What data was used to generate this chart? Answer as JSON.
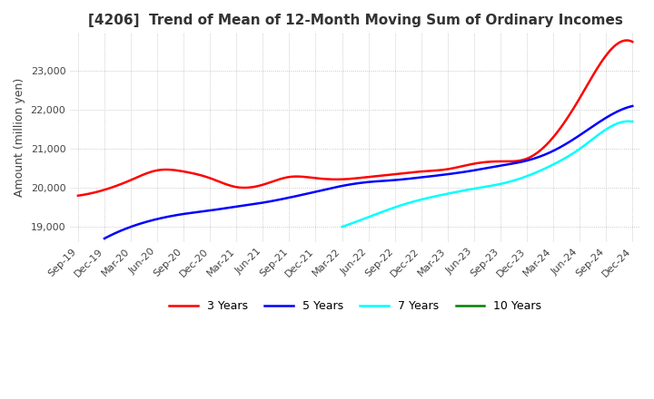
{
  "title": "[4206]  Trend of Mean of 12-Month Moving Sum of Ordinary Incomes",
  "ylabel": "Amount (million yen)",
  "background_color": "#ffffff",
  "grid_color": "#bbbbbb",
  "ylim": [
    18600,
    24000
  ],
  "yticks": [
    19000,
    20000,
    21000,
    22000,
    23000
  ],
  "x_labels": [
    "Sep-19",
    "Dec-19",
    "Mar-20",
    "Jun-20",
    "Sep-20",
    "Dec-20",
    "Mar-21",
    "Jun-21",
    "Sep-21",
    "Dec-21",
    "Mar-22",
    "Jun-22",
    "Sep-22",
    "Dec-22",
    "Mar-23",
    "Jun-23",
    "Sep-23",
    "Dec-23",
    "Mar-24",
    "Jun-24",
    "Sep-24",
    "Dec-24"
  ],
  "lines": {
    "3 Years": {
      "color": "red",
      "x_indices": [
        0,
        1,
        2,
        3,
        4,
        5,
        6,
        7,
        8,
        9,
        10,
        11,
        12,
        13,
        14,
        15,
        16,
        17,
        18,
        19,
        20,
        21
      ],
      "values": [
        19800,
        19950,
        20200,
        20450,
        20420,
        20250,
        20020,
        20080,
        20280,
        20250,
        20220,
        20280,
        20350,
        20420,
        20480,
        20620,
        20680,
        20750,
        21300,
        22300,
        23400,
        23750
      ]
    },
    "5 Years": {
      "color": "blue",
      "x_indices": [
        1,
        2,
        3,
        4,
        5,
        6,
        7,
        8,
        9,
        10,
        11,
        12,
        13,
        14,
        15,
        16,
        17,
        18,
        19,
        20,
        21
      ],
      "values": [
        18700,
        19000,
        19200,
        19330,
        19420,
        19520,
        19620,
        19750,
        19900,
        20050,
        20150,
        20200,
        20270,
        20350,
        20450,
        20570,
        20700,
        20950,
        21350,
        21800,
        22100
      ]
    },
    "7 Years": {
      "color": "cyan",
      "x_indices": [
        10,
        11,
        12,
        13,
        14,
        15,
        16,
        17,
        18,
        19,
        20,
        21
      ],
      "values": [
        19000,
        19250,
        19500,
        19700,
        19850,
        19980,
        20100,
        20300,
        20600,
        21000,
        21500,
        21700
      ]
    },
    "10 Years": {
      "color": "green",
      "x_indices": [],
      "values": []
    }
  },
  "legend_labels": [
    "3 Years",
    "5 Years",
    "7 Years",
    "10 Years"
  ],
  "legend_colors": [
    "red",
    "blue",
    "cyan",
    "green"
  ]
}
